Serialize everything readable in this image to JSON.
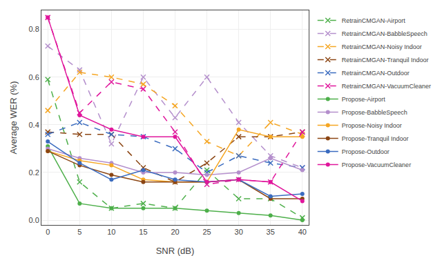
{
  "chart_data": {
    "type": "line",
    "xlabel": "SNR (dB)",
    "ylabel": "Average WER (%)",
    "x": [
      0,
      5,
      10,
      15,
      20,
      25,
      30,
      35,
      40
    ],
    "xlim": [
      -1,
      41
    ],
    "xticks": [
      0,
      5,
      10,
      15,
      20,
      25,
      30,
      35,
      40
    ],
    "ylim": [
      -0.02,
      0.88
    ],
    "yticks": [
      {
        "value": 0.0,
        "label": "0.0"
      },
      0.2,
      0.4,
      0.6,
      0.8
    ],
    "grid": true,
    "legend": "upper right",
    "series": [
      {
        "name": "RetrainCMGAN-Airport",
        "color": "#4daf4a",
        "line_style": "dashed",
        "marker": "x",
        "values": [
          0.59,
          0.16,
          0.05,
          0.07,
          0.05,
          0.21,
          0.09,
          0.09,
          0.01
        ]
      },
      {
        "name": "RetrainCMGAN-BabbleSpeech",
        "color": "#b48fcc",
        "line_style": "dashed",
        "marker": "x",
        "values": [
          0.73,
          0.63,
          0.32,
          0.6,
          0.43,
          0.6,
          0.41,
          0.27,
          0.22
        ]
      },
      {
        "name": "RetrainCMGAN-Noisy Indoor",
        "color": "#f5a623",
        "line_style": "dashed",
        "marker": "x",
        "values": [
          0.46,
          0.62,
          0.6,
          0.57,
          0.48,
          0.33,
          0.27,
          0.41,
          0.36
        ]
      },
      {
        "name": "RetrainCMGAN-Tranquil Indoor",
        "color": "#8b4513",
        "line_style": "dashed",
        "marker": "x",
        "values": [
          0.37,
          0.36,
          0.36,
          0.22,
          0.16,
          0.24,
          0.35,
          0.35,
          0.37
        ]
      },
      {
        "name": "RetrainCMGAN-Outdoor",
        "color": "#3a6bbf",
        "line_style": "dashed",
        "marker": "x",
        "values": [
          0.36,
          0.41,
          0.36,
          0.35,
          0.3,
          0.2,
          0.27,
          0.24,
          0.22
        ]
      },
      {
        "name": "RetrainCMGAN-VacuumCleaner",
        "color": "#e0169c",
        "line_style": "dashed",
        "marker": "x",
        "values": [
          0.85,
          0.45,
          0.58,
          0.55,
          0.37,
          0.15,
          0.17,
          0.16,
          0.37
        ]
      },
      {
        "name": "Propose-Airport",
        "color": "#4daf4a",
        "line_style": "solid",
        "marker": "circle",
        "values": [
          0.31,
          0.07,
          0.05,
          0.05,
          0.05,
          0.04,
          0.03,
          0.02,
          0.0
        ]
      },
      {
        "name": "Propose-BabbleSpeech",
        "color": "#b48fcc",
        "line_style": "solid",
        "marker": "circle",
        "values": [
          0.3,
          0.26,
          0.24,
          0.2,
          0.2,
          0.19,
          0.2,
          0.26,
          0.21
        ]
      },
      {
        "name": "Propose-Noisy Indoor",
        "color": "#f5a623",
        "line_style": "solid",
        "marker": "circle",
        "values": [
          0.29,
          0.25,
          0.23,
          0.17,
          0.16,
          0.16,
          0.38,
          0.35,
          0.35
        ]
      },
      {
        "name": "Propose-Tranquil Indoor",
        "color": "#8b4513",
        "line_style": "solid",
        "marker": "circle",
        "values": [
          0.29,
          0.23,
          0.19,
          0.16,
          0.16,
          0.16,
          0.17,
          0.09,
          0.09
        ]
      },
      {
        "name": "Propose-Outdoor",
        "color": "#3a6bbf",
        "line_style": "solid",
        "marker": "circle",
        "values": [
          0.33,
          0.24,
          0.17,
          0.21,
          0.17,
          0.16,
          0.17,
          0.1,
          0.11
        ]
      },
      {
        "name": "Propose-VacuumCleaner",
        "color": "#e0169c",
        "line_style": "solid",
        "marker": "circle",
        "values": [
          0.85,
          0.44,
          0.38,
          0.35,
          0.35,
          0.16,
          0.17,
          0.16,
          0.08
        ]
      }
    ]
  }
}
